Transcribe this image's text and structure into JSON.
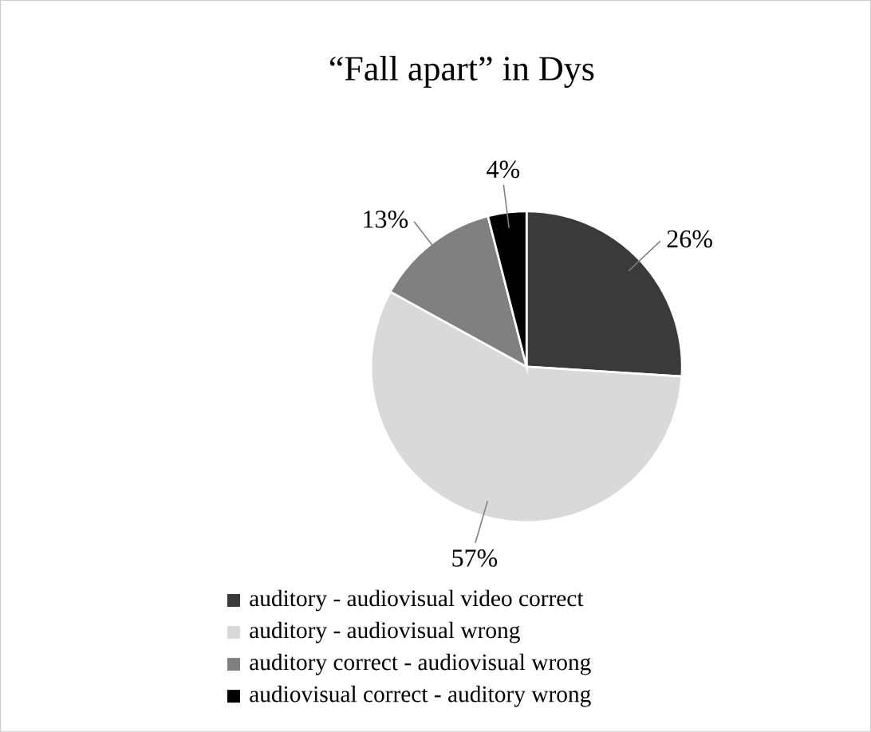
{
  "chart_data": {
    "type": "pie",
    "title": "“Fall apart”  in Dys",
    "categories": [
      "auditory - audiovisual video correct",
      "auditory - audiovisual wrong",
      "auditory correct - audiovisual wrong",
      "audiovisual correct - auditory wrong"
    ],
    "values": [
      26,
      57,
      13,
      4
    ],
    "value_labels": [
      "26%",
      "57%",
      "13%",
      "4%"
    ],
    "colors": [
      "#3a3a3a",
      "#d9d9d9",
      "#808080",
      "#000000"
    ],
    "legend": "bottom"
  }
}
